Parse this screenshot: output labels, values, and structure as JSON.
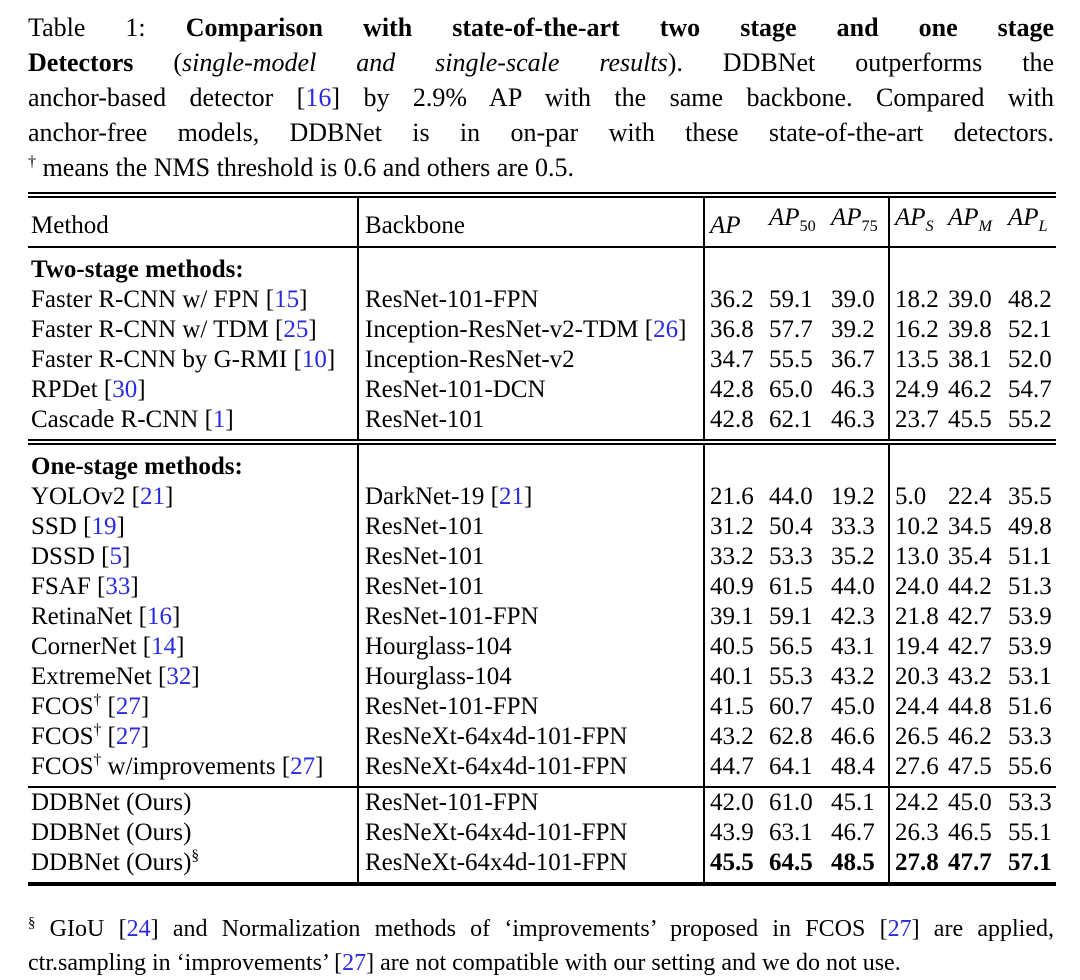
{
  "colors": {
    "citation": "#2a2ae0",
    "text": "#000000",
    "background": "#ffffff"
  },
  "caption": {
    "lines": [
      [
        {
          "t": "Table 1: "
        },
        {
          "t": "Comparison with state-of-the-art two stage and one stage",
          "s": "bold"
        }
      ],
      [
        {
          "t": "Detectors",
          "s": "bold"
        },
        {
          "t": " ("
        },
        {
          "t": "single-model and single-scale results",
          "s": "italic"
        },
        {
          "t": "). DDBNet outperforms the"
        }
      ],
      [
        {
          "t": "anchor-based detector ["
        },
        {
          "t": "16",
          "s": "cite"
        },
        {
          "t": "] by 2.9% AP with the same backbone. Compared with"
        }
      ],
      [
        {
          "t": "anchor-free models, DDBNet is in on-par with these state-of-the-art detectors."
        }
      ],
      [
        {
          "t": "†",
          "s": "sup"
        },
        {
          "t": " means the NMS threshold is 0.6 and others are 0.5."
        }
      ]
    ]
  },
  "table": {
    "headers": [
      {
        "text": "Method"
      },
      {
        "text": "Backbone"
      },
      {
        "text": "AP",
        "sub": ""
      },
      {
        "text": "AP",
        "sub": "50"
      },
      {
        "text": "AP",
        "sub": "75"
      },
      {
        "text": "AP",
        "sub": "S"
      },
      {
        "text": "AP",
        "sub": "M"
      },
      {
        "text": "AP",
        "sub": "L"
      }
    ],
    "sections": [
      {
        "id": "two-stage",
        "title": "Two-stage methods:",
        "separator_before": "",
        "rows": [
          {
            "method": [
              {
                "t": "Faster R-CNN w/ FPN ["
              },
              {
                "t": "15",
                "s": "cite"
              },
              {
                "t": "]"
              }
            ],
            "backbone": [
              {
                "t": "ResNet-101-FPN"
              }
            ],
            "values": [
              "36.2",
              "59.1",
              "39.0",
              "18.2",
              "39.0",
              "48.2"
            ]
          },
          {
            "method": [
              {
                "t": "Faster R-CNN w/ TDM ["
              },
              {
                "t": "25",
                "s": "cite"
              },
              {
                "t": "]"
              }
            ],
            "backbone": [
              {
                "t": "Inception-ResNet-v2-TDM ["
              },
              {
                "t": "26",
                "s": "cite"
              },
              {
                "t": "]"
              }
            ],
            "values": [
              "36.8",
              "57.7",
              "39.2",
              "16.2",
              "39.8",
              "52.1"
            ]
          },
          {
            "method": [
              {
                "t": "Faster R-CNN by G-RMI ["
              },
              {
                "t": "10",
                "s": "cite"
              },
              {
                "t": "]"
              }
            ],
            "backbone": [
              {
                "t": "Inception-ResNet-v2"
              }
            ],
            "values": [
              "34.7",
              "55.5",
              "36.7",
              "13.5",
              "38.1",
              "52.0"
            ]
          },
          {
            "method": [
              {
                "t": "RPDet ["
              },
              {
                "t": "30",
                "s": "cite"
              },
              {
                "t": "]"
              }
            ],
            "backbone": [
              {
                "t": "ResNet-101-DCN"
              }
            ],
            "values": [
              "42.8",
              "65.0",
              "46.3",
              "24.9",
              "46.2",
              "54.7"
            ]
          },
          {
            "method": [
              {
                "t": "Cascade R-CNN ["
              },
              {
                "t": "1",
                "s": "cite"
              },
              {
                "t": "]"
              }
            ],
            "backbone": [
              {
                "t": "ResNet-101"
              }
            ],
            "values": [
              "42.8",
              "62.1",
              "46.3",
              "23.7",
              "45.5",
              "55.2"
            ]
          }
        ]
      },
      {
        "id": "one-stage",
        "title": "One-stage methods:",
        "separator_before": "double",
        "rows": [
          {
            "method": [
              {
                "t": "YOLOv2 ["
              },
              {
                "t": "21",
                "s": "cite"
              },
              {
                "t": "]"
              }
            ],
            "backbone": [
              {
                "t": "DarkNet-19 ["
              },
              {
                "t": "21",
                "s": "cite"
              },
              {
                "t": "]"
              }
            ],
            "values": [
              "21.6",
              "44.0",
              "19.2",
              "5.0",
              "22.4",
              "35.5"
            ]
          },
          {
            "method": [
              {
                "t": "SSD ["
              },
              {
                "t": "19",
                "s": "cite"
              },
              {
                "t": "]"
              }
            ],
            "backbone": [
              {
                "t": "ResNet-101"
              }
            ],
            "values": [
              "31.2",
              "50.4",
              "33.3",
              "10.2",
              "34.5",
              "49.8"
            ]
          },
          {
            "method": [
              {
                "t": "DSSD ["
              },
              {
                "t": "5",
                "s": "cite"
              },
              {
                "t": "]"
              }
            ],
            "backbone": [
              {
                "t": "ResNet-101"
              }
            ],
            "values": [
              "33.2",
              "53.3",
              "35.2",
              "13.0",
              "35.4",
              "51.1"
            ]
          },
          {
            "method": [
              {
                "t": "FSAF ["
              },
              {
                "t": "33",
                "s": "cite"
              },
              {
                "t": "]"
              }
            ],
            "backbone": [
              {
                "t": "ResNet-101"
              }
            ],
            "values": [
              "40.9",
              "61.5",
              "44.0",
              "24.0",
              "44.2",
              "51.3"
            ]
          },
          {
            "method": [
              {
                "t": "RetinaNet ["
              },
              {
                "t": "16",
                "s": "cite"
              },
              {
                "t": "]"
              }
            ],
            "backbone": [
              {
                "t": "ResNet-101-FPN"
              }
            ],
            "values": [
              "39.1",
              "59.1",
              "42.3",
              "21.8",
              "42.7",
              "53.9"
            ]
          },
          {
            "method": [
              {
                "t": "CornerNet ["
              },
              {
                "t": "14",
                "s": "cite"
              },
              {
                "t": "]"
              }
            ],
            "backbone": [
              {
                "t": "Hourglass-104"
              }
            ],
            "values": [
              "40.5",
              "56.5",
              "43.1",
              "19.4",
              "42.7",
              "53.9"
            ]
          },
          {
            "method": [
              {
                "t": "ExtremeNet ["
              },
              {
                "t": "32",
                "s": "cite"
              },
              {
                "t": "]"
              }
            ],
            "backbone": [
              {
                "t": "Hourglass-104"
              }
            ],
            "values": [
              "40.1",
              "55.3",
              "43.2",
              "20.3",
              "43.2",
              "53.1"
            ]
          },
          {
            "method": [
              {
                "t": "FCOS"
              },
              {
                "t": "†",
                "s": "sup"
              },
              {
                "t": " ["
              },
              {
                "t": "27",
                "s": "cite"
              },
              {
                "t": "]"
              }
            ],
            "backbone": [
              {
                "t": "ResNet-101-FPN"
              }
            ],
            "values": [
              "41.5",
              "60.7",
              "45.0",
              "24.4",
              "44.8",
              "51.6"
            ]
          },
          {
            "method": [
              {
                "t": "FCOS"
              },
              {
                "t": "†",
                "s": "sup"
              },
              {
                "t": " ["
              },
              {
                "t": "27",
                "s": "cite"
              },
              {
                "t": "]"
              }
            ],
            "backbone": [
              {
                "t": "ResNeXt-64x4d-101-FPN"
              }
            ],
            "values": [
              "43.2",
              "62.8",
              "46.6",
              "26.5",
              "46.2",
              "53.3"
            ]
          },
          {
            "method": [
              {
                "t": "FCOS"
              },
              {
                "t": "†",
                "s": "sup"
              },
              {
                "t": " w/improvements ["
              },
              {
                "t": "27",
                "s": "cite"
              },
              {
                "t": "]"
              }
            ],
            "backbone": [
              {
                "t": "ResNeXt-64x4d-101-FPN"
              }
            ],
            "values": [
              "44.7",
              "64.1",
              "48.4",
              "27.6",
              "47.5",
              "55.6"
            ]
          }
        ]
      },
      {
        "id": "ddbnet",
        "title": "",
        "separator_before": "single",
        "rows": [
          {
            "method": [
              {
                "t": "DDBNet (Ours)"
              }
            ],
            "backbone": [
              {
                "t": "ResNet-101-FPN"
              }
            ],
            "values": [
              "42.0",
              "61.0",
              "45.1",
              "24.2",
              "45.0",
              "53.3"
            ]
          },
          {
            "method": [
              {
                "t": "DDBNet (Ours)"
              }
            ],
            "backbone": [
              {
                "t": "ResNeXt-64x4d-101-FPN"
              }
            ],
            "values": [
              "43.9",
              "63.1",
              "46.7",
              "26.3",
              "46.5",
              "55.1"
            ]
          },
          {
            "method": [
              {
                "t": "DDBNet (Ours)"
              },
              {
                "t": "§",
                "s": "sup"
              }
            ],
            "backbone": [
              {
                "t": "ResNeXt-64x4d-101-FPN"
              }
            ],
            "values": [
              "45.5",
              "64.5",
              "48.5",
              "27.8",
              "47.7",
              "57.1"
            ],
            "bold_values": true
          }
        ]
      }
    ]
  },
  "footnote": {
    "lines": [
      [
        {
          "t": "§",
          "s": "sup"
        },
        {
          "t": " GIoU ["
        },
        {
          "t": "24",
          "s": "cite"
        },
        {
          "t": "] and Normalization methods of ‘improvements’ proposed in FCOS ["
        },
        {
          "t": "27",
          "s": "cite"
        },
        {
          "t": "] are applied,"
        }
      ],
      [
        {
          "t": "ctr.sampling in ‘improvements’ ["
        },
        {
          "t": "27",
          "s": "cite"
        },
        {
          "t": "] are not compatible with our setting and we do not use."
        }
      ]
    ]
  }
}
